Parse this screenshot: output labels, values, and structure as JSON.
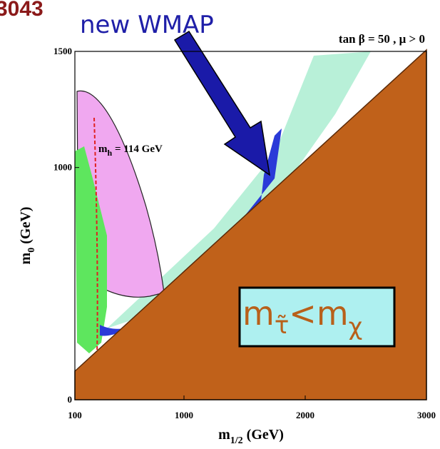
{
  "chart_data": {
    "type": "region",
    "corner_label": "3043",
    "callout": "new WMAP",
    "subtitle": "tan β = 50 ,  μ > 0",
    "contour_label": {
      "main": "m",
      "sub": "h",
      "rest": " = 114 GeV"
    },
    "region_label": {
      "m1": "m",
      "sub1": "τ̃",
      "lt": "<m",
      "sub2": "χ"
    },
    "y_label": {
      "main": "m",
      "sub": "0",
      "unit": " (GeV)"
    },
    "x_label": {
      "main": "m",
      "sub": "1/2",
      "unit": " (GeV)"
    },
    "xlim": [
      100,
      3000
    ],
    "xticks": [
      100,
      1000,
      2000,
      3000
    ],
    "ylim": [
      0,
      1500
    ],
    "yticks": [
      0,
      1000,
      1500
    ]
  }
}
